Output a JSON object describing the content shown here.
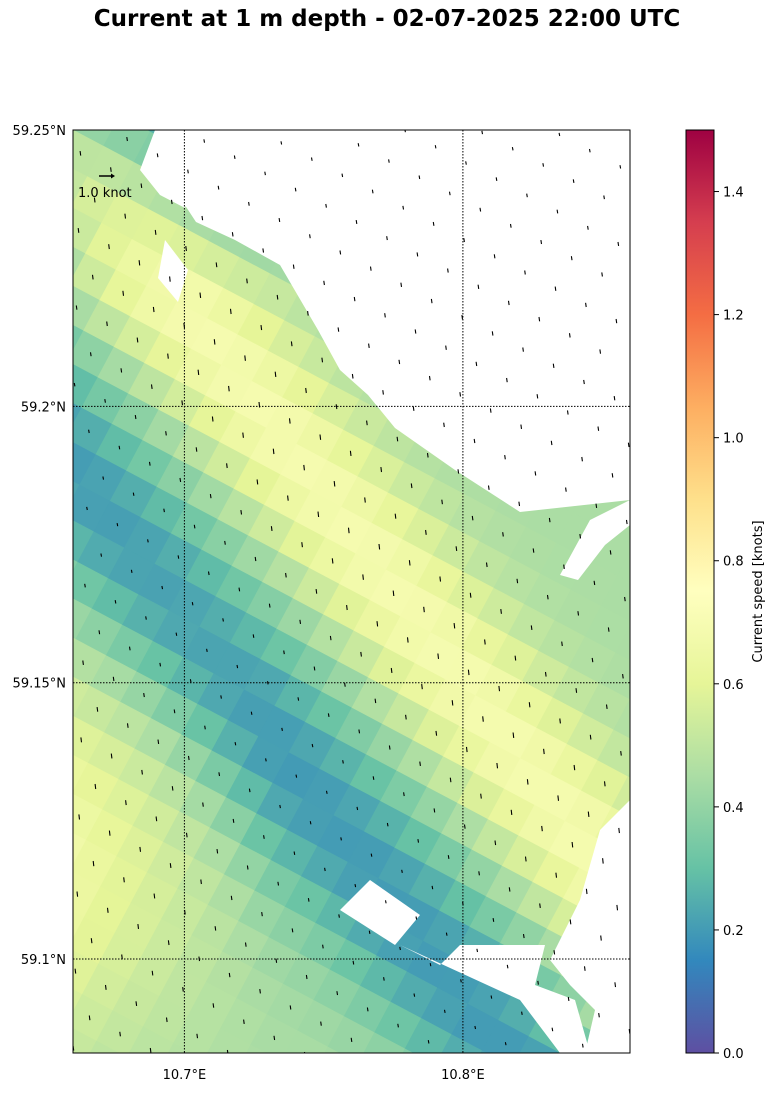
{
  "chart_data": {
    "type": "heatmap",
    "title": "Current at 1 m depth - 02-07-2025 22:00 UTC",
    "x_axis": {
      "range": [
        10.66,
        10.86
      ],
      "ticks": [
        10.7,
        10.8
      ],
      "tick_labels": [
        "10.7°E",
        "10.8°E"
      ],
      "grid": true
    },
    "y_axis": {
      "range": [
        59.083,
        59.25
      ],
      "ticks": [
        59.1,
        59.15,
        59.2,
        59.25
      ],
      "tick_labels": [
        "59.1°N",
        "59.15°N",
        "59.2°N",
        "59.25°N"
      ],
      "grid": true
    },
    "colorbar": {
      "label": "Current speed [knots]",
      "range": [
        0.0,
        1.5
      ],
      "ticks": [
        0.0,
        0.2,
        0.4,
        0.6,
        0.8,
        1.0,
        1.2,
        1.4
      ],
      "tick_labels": [
        "0.0",
        "0.2",
        "0.4",
        "0.6",
        "0.8",
        "1.0",
        "1.2",
        "1.4"
      ],
      "colormap": "Spectral_r"
    },
    "quiver_key": {
      "label": "1.0 knot",
      "value": 1.0
    },
    "land_color": "#ffffff",
    "vector_color": "#000000"
  }
}
